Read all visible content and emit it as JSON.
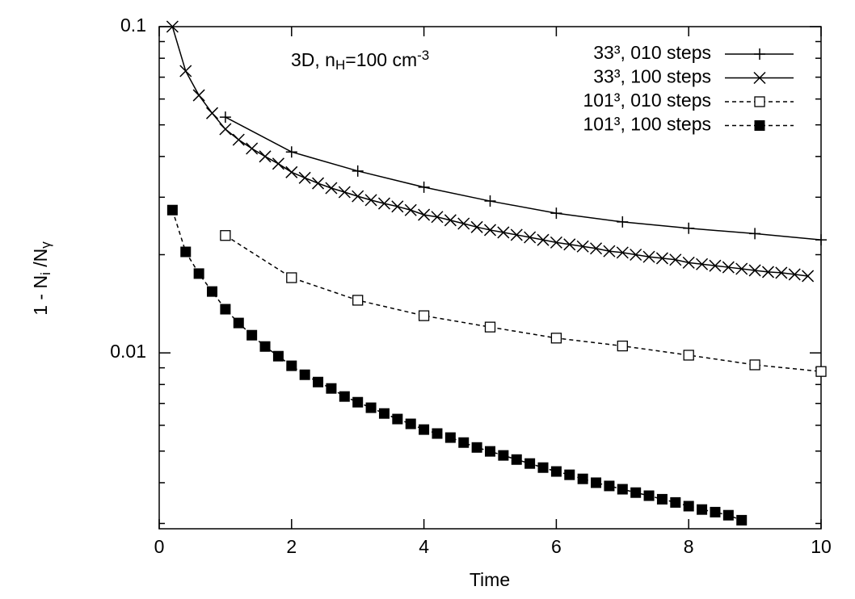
{
  "chart_data": {
    "type": "line",
    "annotation": [
      {
        "text": "3D, n"
      },
      {
        "text": "H",
        "shift": "sub"
      },
      {
        "text": "=100 cm"
      },
      {
        "text": "-3",
        "shift": "super"
      }
    ],
    "xlabel": "Time",
    "ylabel": [
      {
        "text": "1 - N"
      },
      {
        "text": "i",
        "shift": "sub"
      },
      {
        "text": " /N"
      },
      {
        "text": "γ",
        "shift": "sub"
      }
    ],
    "xlim": [
      0,
      10
    ],
    "xticks": [
      0,
      2,
      4,
      6,
      8,
      10
    ],
    "ylim": [
      0.00289,
      0.1
    ],
    "yticks": [
      0.01,
      0.1
    ],
    "yminor_ticks": [
      0.003,
      0.004,
      0.005,
      0.006,
      0.007,
      0.008,
      0.009,
      0.02,
      0.03,
      0.04,
      0.05,
      0.06,
      0.07,
      0.08,
      0.09
    ],
    "log_y": true,
    "legend": "top-right",
    "series": [
      {
        "name": "33³, 010 steps",
        "color": "#000000",
        "marker": "plus",
        "dash": "solid",
        "x": [
          1,
          2,
          3,
          4,
          5,
          6,
          7,
          8,
          9,
          10
        ],
        "values": [
          0.0528,
          0.0413,
          0.0361,
          0.0322,
          0.0292,
          0.0268,
          0.0252,
          0.0241,
          0.0232,
          0.0222
        ]
      },
      {
        "name": "33³, 100 steps",
        "color": "#000000",
        "marker": "cross",
        "dash": "solid",
        "x": [
          0.2,
          0.4,
          0.6,
          0.8,
          1.0,
          1.2,
          1.4,
          1.6,
          1.8,
          2.0,
          2.2,
          2.4,
          2.6,
          2.8,
          3.0,
          3.2,
          3.4,
          3.6,
          3.8,
          4.0,
          4.2,
          4.4,
          4.6,
          4.8,
          5.0,
          5.2,
          5.4,
          5.6,
          5.8,
          6.0,
          6.2,
          6.4,
          6.6,
          6.8,
          7.0,
          7.2,
          7.4,
          7.6,
          7.8,
          8.0,
          8.2,
          8.4,
          8.6,
          8.8,
          9.0,
          9.2,
          9.4,
          9.6,
          9.8
        ],
        "values": [
          0.1,
          0.0731,
          0.0616,
          0.0543,
          0.0485,
          0.045,
          0.0423,
          0.04,
          0.038,
          0.0358,
          0.0344,
          0.0331,
          0.032,
          0.0311,
          0.0302,
          0.0294,
          0.0287,
          0.0281,
          0.0274,
          0.0265,
          0.0261,
          0.0255,
          0.0249,
          0.0243,
          0.0238,
          0.0234,
          0.023,
          0.0226,
          0.0222,
          0.0218,
          0.0215,
          0.0212,
          0.0209,
          0.0205,
          0.0203,
          0.02,
          0.0197,
          0.0195,
          0.0193,
          0.0189,
          0.0187,
          0.0185,
          0.0183,
          0.0181,
          0.0179,
          0.0177,
          0.0176,
          0.0174,
          0.0172
        ]
      },
      {
        "name": "101³, 010 steps",
        "color": "#000000",
        "marker": "open-square",
        "dash": "dashed",
        "x": [
          1,
          2,
          3,
          4,
          5,
          6,
          7,
          8,
          9,
          10
        ],
        "values": [
          0.0229,
          0.017,
          0.0145,
          0.013,
          0.012,
          0.0111,
          0.0105,
          0.00984,
          0.00919,
          0.00877
        ]
      },
      {
        "name": "101³, 100 steps",
        "color": "#000000",
        "marker": "filled-square",
        "dash": "dashed",
        "x": [
          0.2,
          0.4,
          0.6,
          0.8,
          1.0,
          1.2,
          1.4,
          1.6,
          1.8,
          2.0,
          2.2,
          2.4,
          2.6,
          2.8,
          3.0,
          3.2,
          3.4,
          3.6,
          3.8,
          4.0,
          4.2,
          4.4,
          4.6,
          4.8,
          5.0,
          5.2,
          5.4,
          5.6,
          5.8,
          6.0,
          6.2,
          6.4,
          6.6,
          6.8,
          7.0,
          7.2,
          7.4,
          7.6,
          7.8,
          8.0,
          8.2,
          8.4,
          8.6,
          8.8
        ],
        "values": [
          0.0274,
          0.0204,
          0.0175,
          0.01542,
          0.01361,
          0.01235,
          0.01133,
          0.01046,
          0.00977,
          0.00913,
          0.00857,
          0.00814,
          0.00778,
          0.00735,
          0.00706,
          0.00679,
          0.00652,
          0.00627,
          0.00606,
          0.00582,
          0.00566,
          0.0055,
          0.00531,
          0.00513,
          0.00499,
          0.00485,
          0.00471,
          0.00458,
          0.00445,
          0.00433,
          0.00423,
          0.00411,
          0.004,
          0.00391,
          0.00382,
          0.00373,
          0.00365,
          0.00356,
          0.00348,
          0.00339,
          0.00331,
          0.00325,
          0.00318,
          0.00307
        ]
      }
    ]
  }
}
